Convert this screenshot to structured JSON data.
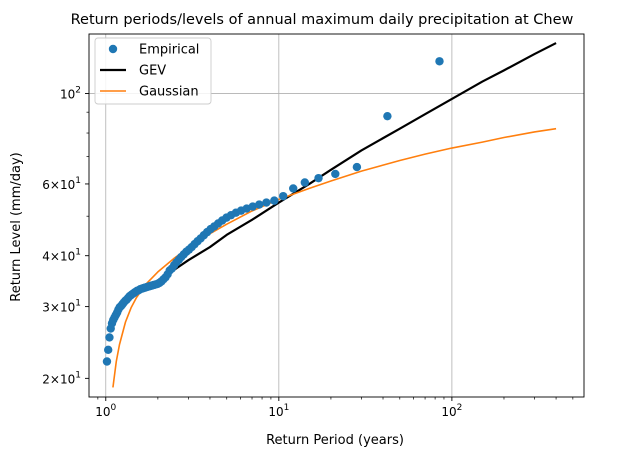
{
  "chart_data": {
    "type": "scatter",
    "title": "Return periods/levels of annual maximum daily precipitation at Chew",
    "xlabel": "Return Period (years)",
    "ylabel": "Return Level (mm/day)",
    "xscale": "log",
    "yscale": "log",
    "xlim": [
      0.8,
      580
    ],
    "ylim": [
      18.0,
      140.0
    ],
    "grid": "major",
    "legend_position": "top-left",
    "x_ticks": [
      {
        "value": 1,
        "base": "10",
        "exp": "0"
      },
      {
        "value": 10,
        "base": "10",
        "exp": "1"
      },
      {
        "value": 100,
        "base": "10",
        "exp": "2"
      }
    ],
    "y_ticks": [
      {
        "value": 20,
        "coef": "2",
        "base": "10",
        "exp": "1"
      },
      {
        "value": 30,
        "coef": "3",
        "base": "10",
        "exp": "1"
      },
      {
        "value": 40,
        "coef": "4",
        "base": "10",
        "exp": "1"
      },
      {
        "value": 60,
        "coef": "6",
        "base": "10",
        "exp": "1"
      },
      {
        "value": 100,
        "coef": "",
        "base": "10",
        "exp": "2"
      }
    ],
    "series": [
      {
        "name": "Empirical",
        "kind": "points",
        "color": "#1f77b4",
        "x": [
          1.016,
          1.033,
          1.05,
          1.068,
          1.086,
          1.104,
          1.123,
          1.143,
          1.163,
          1.183,
          1.204,
          1.226,
          1.248,
          1.271,
          1.295,
          1.32,
          1.345,
          1.371,
          1.398,
          1.426,
          1.455,
          1.485,
          1.516,
          1.548,
          1.581,
          1.615,
          1.651,
          1.688,
          1.727,
          1.767,
          1.808,
          1.852,
          1.897,
          1.944,
          1.993,
          2.044,
          2.098,
          2.154,
          2.214,
          2.276,
          2.341,
          2.41,
          2.483,
          2.56,
          2.642,
          2.729,
          2.822,
          2.921,
          3.026,
          3.139,
          3.261,
          3.391,
          3.533,
          3.686,
          3.853,
          4.036,
          4.238,
          4.461,
          4.709,
          4.986,
          5.297,
          5.65,
          6.054,
          6.52,
          7.063,
          7.705,
          8.476,
          9.417,
          10.6,
          12.11,
          14.13,
          16.96,
          21.2,
          28.26,
          42.4,
          84.8
        ],
        "y": [
          22.0,
          23.5,
          25.2,
          26.5,
          27.3,
          27.8,
          28.2,
          28.6,
          29.0,
          29.5,
          29.9,
          30.1,
          30.4,
          30.7,
          31.0,
          31.2,
          31.5,
          31.8,
          32.0,
          32.2,
          32.4,
          32.6,
          32.8,
          32.9,
          33.1,
          33.2,
          33.3,
          33.4,
          33.5,
          33.6,
          33.7,
          33.8,
          33.9,
          34.0,
          34.1,
          34.3,
          34.6,
          35.0,
          35.4,
          36.0,
          36.8,
          37.2,
          37.9,
          38.5,
          39.1,
          39.7,
          40.3,
          40.9,
          41.4,
          42.0,
          42.7,
          43.4,
          44.1,
          44.9,
          45.7,
          46.5,
          47.2,
          48.0,
          48.8,
          49.6,
          50.3,
          51.0,
          51.6,
          52.2,
          52.8,
          53.4,
          54.0,
          54.6,
          56.0,
          58.5,
          60.5,
          62.0,
          63.5,
          66.0,
          88.0,
          120.0
        ]
      },
      {
        "name": "GEV",
        "kind": "line",
        "color": "#000000",
        "x": [
          1.1,
          1.2,
          1.35,
          1.5,
          1.75,
          2.0,
          2.5,
          3.0,
          4.0,
          5.0,
          7.0,
          10,
          15,
          20,
          30,
          50,
          70,
          100,
          150,
          200,
          300,
          400
        ],
        "y": [
          27.5,
          29.5,
          31.0,
          32.2,
          33.6,
          34.8,
          37.0,
          39.0,
          42.0,
          45.0,
          49.0,
          54.0,
          60.0,
          65.0,
          72.5,
          82.0,
          89.0,
          97.0,
          107.0,
          114.0,
          125.0,
          133.0
        ]
      },
      {
        "name": "Gaussian",
        "kind": "line",
        "color": "#ff7f0e",
        "x": [
          1.1,
          1.15,
          1.2,
          1.3,
          1.4,
          1.5,
          1.7,
          2.0,
          2.5,
          3.0,
          4.0,
          5.0,
          7.0,
          10,
          15,
          20,
          30,
          50,
          70,
          100,
          150,
          200,
          300,
          400
        ],
        "y": [
          19.0,
          22.0,
          24.2,
          27.5,
          29.8,
          31.5,
          34.0,
          36.5,
          39.5,
          41.8,
          45.3,
          47.8,
          51.5,
          55.0,
          58.5,
          61.0,
          64.5,
          68.5,
          71.0,
          73.5,
          76.0,
          78.0,
          80.5,
          82.0
        ]
      }
    ]
  }
}
